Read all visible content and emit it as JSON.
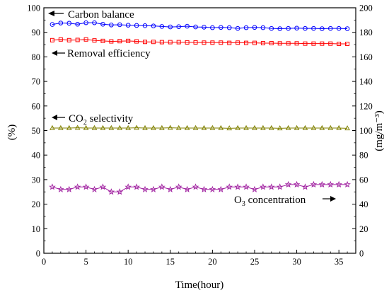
{
  "chart_data": {
    "type": "line",
    "xlabel": "Time(hour)",
    "ylabel_left": "(%)",
    "ylabel_right": "(mg/m⁻³)",
    "xlim": [
      0,
      37
    ],
    "ylim_left": [
      0,
      100
    ],
    "ylim_right": [
      0,
      200
    ],
    "x_ticks": [
      0,
      5,
      10,
      15,
      20,
      25,
      30,
      35
    ],
    "y_ticks_left": [
      0,
      10,
      20,
      30,
      40,
      50,
      60,
      70,
      80,
      90,
      100
    ],
    "y_ticks_right": [
      0,
      20,
      40,
      60,
      80,
      100,
      120,
      140,
      160,
      180,
      200
    ],
    "x": [
      1,
      2,
      3,
      4,
      5,
      6,
      7,
      8,
      9,
      10,
      11,
      12,
      13,
      14,
      15,
      16,
      17,
      18,
      19,
      20,
      21,
      22,
      23,
      24,
      25,
      26,
      27,
      28,
      29,
      30,
      31,
      32,
      33,
      34,
      35,
      36
    ],
    "series": [
      {
        "name": "Carbon balance",
        "axis": "left",
        "color": "#0000ff",
        "marker": "circle",
        "arrow": "left",
        "values": [
          93.2,
          93.8,
          93.7,
          93.3,
          93.9,
          93.9,
          93.3,
          93.0,
          93.1,
          92.9,
          92.8,
          92.7,
          92.6,
          92.4,
          92.2,
          92.3,
          92.5,
          92.2,
          92.1,
          91.9,
          92.0,
          91.9,
          91.6,
          91.9,
          92.0,
          91.9,
          91.6,
          91.5,
          91.6,
          91.7,
          91.6,
          91.6,
          91.5,
          91.6,
          91.6,
          91.5
        ]
      },
      {
        "name": "Removal efficiency",
        "axis": "left",
        "color": "#ff0000",
        "marker": "square",
        "arrow": "left",
        "values": [
          86.8,
          87.1,
          86.8,
          86.9,
          87.1,
          86.7,
          86.5,
          86.3,
          86.4,
          86.5,
          86.3,
          86.1,
          86.1,
          86.0,
          86.0,
          86.0,
          85.9,
          85.9,
          85.8,
          85.8,
          85.8,
          85.7,
          85.8,
          85.7,
          85.7,
          85.6,
          85.6,
          85.5,
          85.5,
          85.5,
          85.4,
          85.4,
          85.4,
          85.4,
          85.3,
          85.3
        ]
      },
      {
        "name": "CO2 selectivity",
        "name_main": "CO",
        "name_sub": "2",
        "name_tail": " selectivity",
        "axis": "left",
        "color": "#808000",
        "marker": "triangle",
        "arrow": "left",
        "values": [
          51.0,
          51.0,
          51.0,
          51.1,
          51.0,
          51.0,
          51.0,
          51.0,
          51.0,
          51.0,
          51.1,
          51.0,
          51.0,
          51.0,
          51.1,
          51.0,
          51.0,
          51.0,
          51.0,
          51.0,
          51.0,
          50.9,
          51.0,
          51.0,
          51.0,
          51.0,
          51.0,
          50.9,
          51.0,
          51.0,
          51.0,
          51.0,
          51.0,
          51.0,
          51.0,
          50.9
        ]
      },
      {
        "name": "O3 concentration",
        "name_main": "O",
        "name_sub": "3",
        "name_tail": " concentration",
        "axis": "left",
        "color": "#a020a0",
        "marker": "star",
        "arrow": "right",
        "values": [
          27,
          26,
          26,
          27,
          27,
          26,
          27,
          25,
          25,
          27,
          27,
          26,
          26,
          27,
          26,
          27,
          26,
          27,
          26,
          26,
          26,
          27,
          27,
          27,
          26,
          27,
          27,
          27,
          28,
          28,
          27,
          28,
          28,
          28,
          28,
          28
        ]
      }
    ],
    "grid": false,
    "legend": "inline annotations"
  }
}
